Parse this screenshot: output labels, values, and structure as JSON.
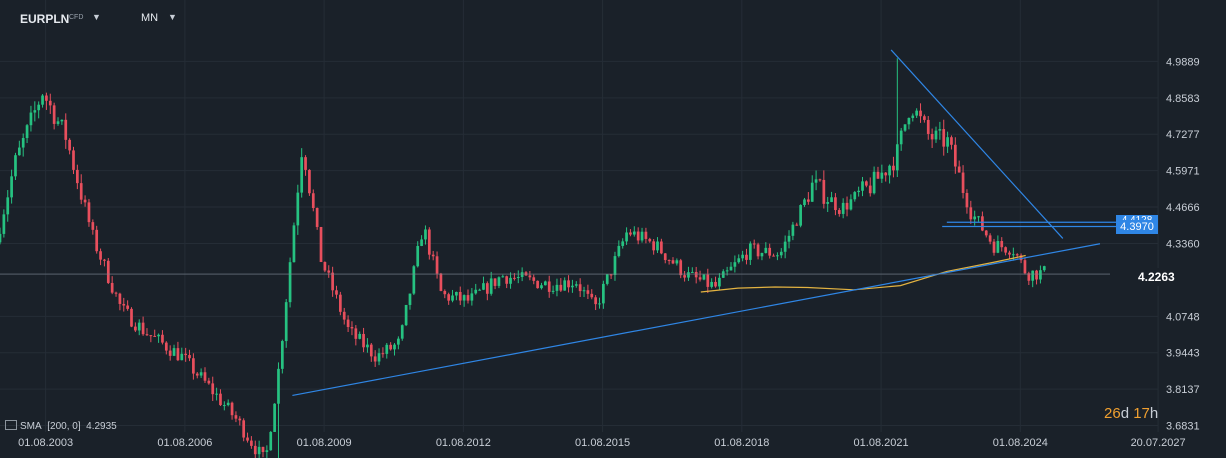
{
  "toolbar": {
    "symbol": "EURPLN",
    "instrument_type": "CFD",
    "timeframe": "MN"
  },
  "indicator": {
    "label": "SMA",
    "params": "[200,  0]",
    "value": "4.2935"
  },
  "timer": {
    "days": "26",
    "d": "d",
    "hours": "17",
    "h": "h"
  },
  "price_labels": {
    "last": "4.2263",
    "level_upper": "4.4128",
    "level_lower": "4.3970"
  },
  "colors": {
    "background": "#1a2129",
    "up": "#26c281",
    "down": "#e84f5d",
    "trendline": "#2f86e5",
    "sma": "#e3b341",
    "grid": "#252d36"
  },
  "chart_data": {
    "type": "candlestick",
    "title": "EURPLN",
    "ylim": [
      3.66,
      5.08
    ],
    "y_ticks": [
      "4.9889",
      "4.8583",
      "4.7277",
      "4.5971",
      "4.4666",
      "4.3360",
      "4.2263",
      "4.0748",
      "3.9443",
      "3.8137",
      "3.6831"
    ],
    "x_ticks": [
      "01.08.2003",
      "01.08.2006",
      "01.08.2009",
      "01.08.2012",
      "01.08.2015",
      "01.08.2018",
      "01.08.2021",
      "01.08.2024",
      "20.07.2027"
    ],
    "x_start": 2002.6,
    "x_end": 2027.55,
    "anchors": [
      [
        2002.6,
        4.34
      ],
      [
        2003.0,
        4.62
      ],
      [
        2003.6,
        4.88
      ],
      [
        2004.1,
        4.72
      ],
      [
        2004.7,
        4.35
      ],
      [
        2005.3,
        4.1
      ],
      [
        2005.8,
        4.02
      ],
      [
        2006.6,
        3.93
      ],
      [
        2007.3,
        3.8
      ],
      [
        2007.8,
        3.7
      ],
      [
        2008.4,
        3.55
      ],
      [
        2008.7,
        3.9
      ],
      [
        2009.2,
        4.7
      ],
      [
        2009.6,
        4.28
      ],
      [
        2010.2,
        4.02
      ],
      [
        2010.8,
        3.93
      ],
      [
        2011.3,
        3.98
      ],
      [
        2011.8,
        4.4
      ],
      [
        2012.2,
        4.15
      ],
      [
        2012.8,
        4.13
      ],
      [
        2013.5,
        4.22
      ],
      [
        2014.5,
        4.19
      ],
      [
        2015.1,
        4.2
      ],
      [
        2015.5,
        4.1
      ],
      [
        2016.2,
        4.38
      ],
      [
        2016.8,
        4.33
      ],
      [
        2017.5,
        4.22
      ],
      [
        2018.1,
        4.18
      ],
      [
        2018.8,
        4.31
      ],
      [
        2019.5,
        4.3
      ],
      [
        2020.2,
        4.55
      ],
      [
        2020.8,
        4.46
      ],
      [
        2021.5,
        4.55
      ],
      [
        2022.0,
        4.65
      ],
      [
        2022.3,
        4.84
      ],
      [
        2022.7,
        4.72
      ],
      [
        2023.1,
        4.7
      ],
      [
        2023.6,
        4.45
      ],
      [
        2024.1,
        4.33
      ],
      [
        2024.5,
        4.32
      ],
      [
        2024.8,
        4.23
      ],
      [
        2025.1,
        4.23
      ]
    ],
    "series": [
      {
        "kind": "sma",
        "points": [
          [
            2017.7,
            4.162
          ],
          [
            2018.5,
            4.176
          ],
          [
            2019.3,
            4.18
          ],
          [
            2020.0,
            4.178
          ],
          [
            2021.0,
            4.17
          ],
          [
            2022.0,
            4.185
          ],
          [
            2023.0,
            4.236
          ],
          [
            2024.0,
            4.268
          ],
          [
            2024.7,
            4.293
          ]
        ]
      },
      {
        "kind": "trendline",
        "points": [
          [
            2008.9,
            3.791
          ],
          [
            2026.3,
            4.335
          ]
        ]
      },
      {
        "kind": "trendline",
        "points": [
          [
            2021.8,
            5.03
          ],
          [
            2025.5,
            4.354
          ]
        ]
      },
      {
        "kind": "level",
        "from": 2023.0,
        "to": 2026.5,
        "y": 4.412
      },
      {
        "kind": "level",
        "from": 2022.9,
        "to": 2026.5,
        "y": 4.397
      }
    ],
    "extremes": [
      [
        2021.95,
        5.0
      ],
      [
        2008.6,
        3.55
      ]
    ]
  }
}
